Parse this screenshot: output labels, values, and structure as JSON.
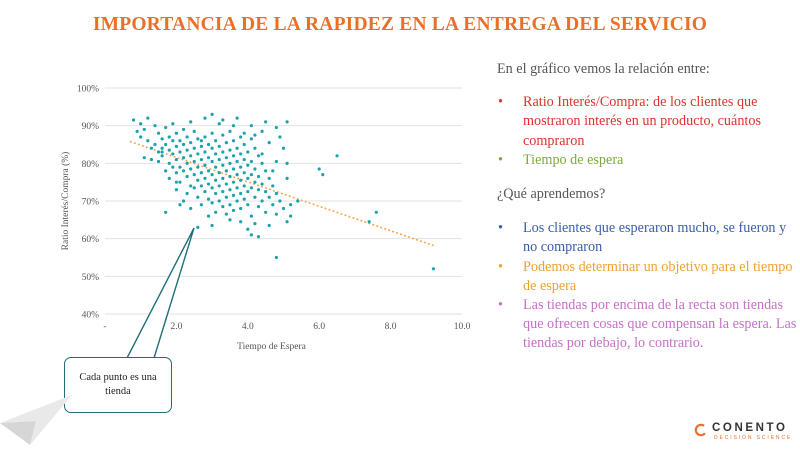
{
  "slide": {
    "title": "IMPORTANCIA DE LA RAPIDEZ EN LA ENTREGA DEL SERVICIO"
  },
  "chart_data": {
    "type": "scatter",
    "xlabel": "Tiempo de Espera",
    "ylabel": "Ratio Interés/Compra (%)",
    "xlim": [
      0,
      10
    ],
    "ylim": [
      40,
      100
    ],
    "x_ticks": [
      "-",
      "2.0",
      "4.0",
      "6.0",
      "8.0",
      "10.0"
    ],
    "y_ticks": [
      "40%",
      "50%",
      "60%",
      "70%",
      "80%",
      "90%",
      "100%"
    ],
    "grid": "horizontal",
    "trendline": {
      "x": [
        0.7,
        9.2
      ],
      "y": [
        85.8,
        58.2
      ],
      "style": "dotted",
      "color": "#f0a34a"
    },
    "marker_color": "#1aa3ad",
    "points": [
      [
        0.8,
        91.5
      ],
      [
        0.9,
        88.5
      ],
      [
        1.0,
        90.5
      ],
      [
        1.0,
        87.0
      ],
      [
        1.1,
        89.0
      ],
      [
        1.2,
        86.0
      ],
      [
        1.2,
        92.0
      ],
      [
        1.3,
        84.0
      ],
      [
        1.3,
        81.0
      ],
      [
        1.4,
        90.0
      ],
      [
        1.4,
        85.0
      ],
      [
        1.5,
        88.0
      ],
      [
        1.5,
        83.0
      ],
      [
        1.5,
        80.5
      ],
      [
        1.6,
        86.5
      ],
      [
        1.6,
        84.0
      ],
      [
        1.6,
        82.0
      ],
      [
        1.7,
        89.5
      ],
      [
        1.7,
        85.0
      ],
      [
        1.7,
        78.0
      ],
      [
        1.8,
        87.0
      ],
      [
        1.8,
        83.5
      ],
      [
        1.8,
        80.0
      ],
      [
        1.8,
        76.0
      ],
      [
        1.9,
        90.5
      ],
      [
        1.9,
        86.0
      ],
      [
        1.9,
        82.5
      ],
      [
        1.9,
        79.0
      ],
      [
        2.0,
        88.0
      ],
      [
        2.0,
        84.5
      ],
      [
        2.0,
        81.0
      ],
      [
        2.0,
        77.5
      ],
      [
        2.0,
        73.0
      ],
      [
        2.1,
        86.0
      ],
      [
        2.1,
        83.0
      ],
      [
        2.1,
        79.0
      ],
      [
        2.1,
        75.0
      ],
      [
        2.2,
        89.0
      ],
      [
        2.2,
        85.0
      ],
      [
        2.2,
        81.5
      ],
      [
        2.2,
        78.0
      ],
      [
        2.2,
        70.0
      ],
      [
        2.3,
        87.0
      ],
      [
        2.3,
        83.5
      ],
      [
        2.3,
        80.0
      ],
      [
        2.3,
        76.5
      ],
      [
        2.3,
        72.0
      ],
      [
        2.4,
        85.5
      ],
      [
        2.4,
        82.0
      ],
      [
        2.4,
        78.5
      ],
      [
        2.4,
        74.0
      ],
      [
        2.4,
        68.0
      ],
      [
        2.5,
        88.5
      ],
      [
        2.5,
        84.0
      ],
      [
        2.5,
        80.5
      ],
      [
        2.5,
        77.0
      ],
      [
        2.5,
        73.5
      ],
      [
        2.6,
        86.5
      ],
      [
        2.6,
        82.5
      ],
      [
        2.6,
        79.0
      ],
      [
        2.6,
        75.5
      ],
      [
        2.6,
        71.0
      ],
      [
        2.7,
        84.5
      ],
      [
        2.7,
        81.0
      ],
      [
        2.7,
        77.5
      ],
      [
        2.7,
        74.0
      ],
      [
        2.7,
        69.0
      ],
      [
        2.8,
        92.0
      ],
      [
        2.8,
        87.0
      ],
      [
        2.8,
        83.0
      ],
      [
        2.8,
        79.5
      ],
      [
        2.8,
        76.0
      ],
      [
        2.8,
        72.5
      ],
      [
        2.9,
        85.0
      ],
      [
        2.9,
        81.5
      ],
      [
        2.9,
        78.0
      ],
      [
        2.9,
        74.5
      ],
      [
        2.9,
        70.5
      ],
      [
        2.9,
        66.0
      ],
      [
        3.0,
        88.0
      ],
      [
        3.0,
        84.0
      ],
      [
        3.0,
        80.5
      ],
      [
        3.0,
        77.0
      ],
      [
        3.0,
        73.5
      ],
      [
        3.0,
        69.5
      ],
      [
        3.1,
        86.0
      ],
      [
        3.1,
        82.5
      ],
      [
        3.1,
        79.0
      ],
      [
        3.1,
        75.5
      ],
      [
        3.1,
        72.0
      ],
      [
        3.1,
        67.0
      ],
      [
        3.2,
        90.5
      ],
      [
        3.2,
        84.5
      ],
      [
        3.2,
        81.0
      ],
      [
        3.2,
        77.5
      ],
      [
        3.2,
        74.0
      ],
      [
        3.2,
        70.0
      ],
      [
        3.3,
        87.5
      ],
      [
        3.3,
        83.0
      ],
      [
        3.3,
        79.5
      ],
      [
        3.3,
        76.0
      ],
      [
        3.3,
        72.5
      ],
      [
        3.3,
        68.5
      ],
      [
        3.4,
        85.5
      ],
      [
        3.4,
        81.5
      ],
      [
        3.4,
        78.0
      ],
      [
        3.4,
        74.5
      ],
      [
        3.4,
        71.0
      ],
      [
        3.4,
        66.5
      ],
      [
        3.5,
        88.5
      ],
      [
        3.5,
        83.5
      ],
      [
        3.5,
        80.0
      ],
      [
        3.5,
        76.5
      ],
      [
        3.5,
        73.0
      ],
      [
        3.5,
        69.0
      ],
      [
        3.6,
        86.0
      ],
      [
        3.6,
        82.0
      ],
      [
        3.6,
        78.5
      ],
      [
        3.6,
        75.0
      ],
      [
        3.6,
        71.5
      ],
      [
        3.6,
        67.5
      ],
      [
        3.7,
        84.0
      ],
      [
        3.7,
        80.5
      ],
      [
        3.7,
        77.0
      ],
      [
        3.7,
        73.5
      ],
      [
        3.7,
        70.0
      ],
      [
        3.8,
        87.0
      ],
      [
        3.8,
        82.5
      ],
      [
        3.8,
        79.0
      ],
      [
        3.8,
        75.5
      ],
      [
        3.8,
        72.0
      ],
      [
        3.8,
        68.0
      ],
      [
        3.8,
        64.5
      ],
      [
        3.9,
        85.0
      ],
      [
        3.9,
        81.0
      ],
      [
        3.9,
        77.5
      ],
      [
        3.9,
        74.0
      ],
      [
        3.9,
        70.5
      ],
      [
        4.0,
        83.0
      ],
      [
        4.0,
        79.5
      ],
      [
        4.0,
        76.0
      ],
      [
        4.0,
        72.5
      ],
      [
        4.0,
        69.0
      ],
      [
        4.0,
        62.5
      ],
      [
        4.1,
        86.5
      ],
      [
        4.1,
        80.5
      ],
      [
        4.1,
        77.0
      ],
      [
        4.1,
        73.5
      ],
      [
        4.1,
        66.0
      ],
      [
        4.2,
        84.0
      ],
      [
        4.2,
        78.5
      ],
      [
        4.2,
        75.0
      ],
      [
        4.2,
        71.0
      ],
      [
        4.3,
        82.0
      ],
      [
        4.3,
        76.5
      ],
      [
        4.3,
        73.0
      ],
      [
        4.3,
        68.5
      ],
      [
        4.4,
        80.0
      ],
      [
        4.4,
        74.5
      ],
      [
        4.4,
        70.0
      ],
      [
        4.5,
        78.0
      ],
      [
        4.5,
        72.5
      ],
      [
        4.5,
        67.0
      ],
      [
        4.6,
        76.0
      ],
      [
        4.6,
        71.0
      ],
      [
        4.7,
        74.0
      ],
      [
        4.7,
        69.0
      ],
      [
        4.8,
        72.0
      ],
      [
        4.8,
        66.5
      ],
      [
        4.9,
        70.0
      ],
      [
        5.0,
        68.0
      ],
      [
        3.0,
        93.0
      ],
      [
        3.3,
        91.5
      ],
      [
        3.7,
        92.0
      ],
      [
        4.1,
        90.0
      ],
      [
        4.4,
        88.5
      ],
      [
        4.5,
        91.0
      ],
      [
        4.8,
        89.5
      ],
      [
        4.9,
        87.0
      ],
      [
        5.1,
        91.0
      ],
      [
        5.0,
        84.0
      ],
      [
        5.1,
        80.0
      ],
      [
        4.6,
        85.5
      ],
      [
        4.2,
        87.5
      ],
      [
        3.9,
        88.0
      ],
      [
        5.1,
        76.0
      ],
      [
        4.4,
        82.5
      ],
      [
        4.8,
        80.5
      ],
      [
        4.2,
        64.0
      ],
      [
        4.6,
        63.5
      ],
      [
        3.5,
        65.0
      ],
      [
        2.6,
        63.0
      ],
      [
        4.1,
        61.0
      ],
      [
        5.1,
        64.5
      ],
      [
        4.3,
        60.5
      ],
      [
        1.7,
        67.0
      ],
      [
        2.1,
        69.0
      ],
      [
        3.0,
        63.5
      ],
      [
        4.8,
        55.0
      ],
      [
        5.2,
        69.0
      ],
      [
        5.4,
        70.0
      ],
      [
        5.2,
        66.0
      ],
      [
        6.0,
        78.5
      ],
      [
        6.1,
        77.0
      ],
      [
        6.5,
        82.0
      ],
      [
        7.4,
        64.5
      ],
      [
        7.6,
        67.0
      ],
      [
        9.2,
        52.0
      ],
      [
        1.1,
        81.5
      ],
      [
        2.4,
        91.0
      ],
      [
        2.0,
        75.0
      ],
      [
        1.6,
        83.0
      ],
      [
        2.7,
        86.0
      ],
      [
        3.6,
        90.0
      ],
      [
        4.7,
        78.0
      ]
    ]
  },
  "panel": {
    "intro": "En el gráfico vemos la relación entre:",
    "list1": [
      {
        "text": "Ratio Interés/Compra: de los clientes que mostraron interés en un producto, cuántos compraron",
        "color": "#d9342b"
      },
      {
        "text": "Tiempo de espera",
        "color": "#7aab3b"
      }
    ],
    "question": "¿Qué aprendemos?",
    "list2": [
      {
        "text": "Los clientes que esperaron mucho, se fueron y no compraron",
        "color": "#3a5da8"
      },
      {
        "text": "Podemos determinar un objetivo para el tiempo de espera",
        "color": "#f0a22e"
      },
      {
        "text": "Las tiendas por encima de la recta son tiendas que ofrecen cosas que compensan la espera. Las tiendas por debajo, lo contrario.",
        "color": "#c86fc9"
      }
    ]
  },
  "callout": {
    "text": "Cada punto es una tienda"
  },
  "brand": {
    "name": "CONENTO",
    "tagline": "DECISION SCIENCE",
    "color": "#e8702a",
    "icon": "conento-logo-icon"
  }
}
